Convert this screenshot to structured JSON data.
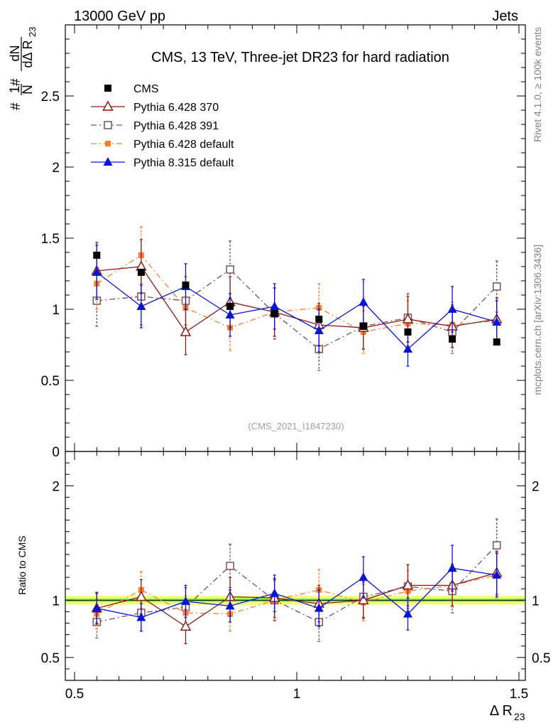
{
  "header": {
    "left": "13000 GeV pp",
    "right": "Jets"
  },
  "side_labels": {
    "rivet": "Rivet 4.1.0, ≥ 100k events",
    "mcplots": "mcplots.cern.ch [arXiv:1306.3436]"
  },
  "watermark": "(CMS_2021_I1847230)",
  "colors": {
    "cms": "#000000",
    "p370": "#8b1a1a",
    "p391": "#7a5060",
    "pdefault": "#ff7f2a",
    "p8": "#0a14d2",
    "band_outer": "#f2ff80",
    "band_inner": "#7cfc5a"
  },
  "chart_data": [
    {
      "type": "scatter",
      "title": "CMS, 13 TeV, Three-jet DR23 for hard radiation",
      "xlabel": "Δ R",
      "xlabel_sub": "23",
      "ylabel": "1/N dN/dΔ R23",
      "ylabel_parts": {
        "hash1": "#",
        "one": "1",
        "N": "N",
        "hash2": "#",
        "dN": "dN",
        "dDR": "dΔ R",
        "sub": "23"
      },
      "xlim": [
        0.5,
        1.5
      ],
      "ylim": [
        0,
        3.0
      ],
      "yticks": [
        0,
        0.5,
        1,
        1.5,
        2,
        2.5
      ],
      "ytick_labels": [
        "0",
        "0.5",
        "1",
        "1.5",
        "2",
        "2.5"
      ],
      "x": [
        0.55,
        0.65,
        0.75,
        0.85,
        0.95,
        1.05,
        1.15,
        1.25,
        1.35,
        1.45
      ],
      "series": [
        {
          "name": "CMS",
          "key": "cms",
          "marker": "filled-square",
          "line": "none",
          "values": [
            1.38,
            1.26,
            1.17,
            1.02,
            0.97,
            0.93,
            0.88,
            0.84,
            0.79,
            0.77
          ],
          "errors": [
            0.02,
            0.02,
            0.02,
            0.02,
            0.02,
            0.02,
            0.02,
            0.02,
            0.02,
            0.02
          ]
        },
        {
          "name": "Pythia 6.428 370",
          "key": "p370",
          "marker": "open-triangle",
          "line": "solid",
          "values": [
            1.27,
            1.3,
            0.84,
            1.05,
            0.98,
            0.89,
            0.87,
            0.93,
            0.88,
            0.93
          ],
          "errors": [
            0.2,
            0.19,
            0.16,
            0.18,
            0.17,
            0.15,
            0.15,
            0.16,
            0.15,
            0.15
          ]
        },
        {
          "name": "Pythia 6.428 391",
          "key": "p391",
          "marker": "open-square",
          "line": "dashdot",
          "values": [
            1.06,
            1.09,
            1.06,
            1.28,
            0.97,
            0.72,
            0.88,
            0.94,
            0.84,
            1.16
          ],
          "errors": [
            0.18,
            0.2,
            0.17,
            0.2,
            0.18,
            0.15,
            0.16,
            0.17,
            0.15,
            0.18
          ]
        },
        {
          "name": "Pythia 6.428 default",
          "key": "pdefault",
          "marker": "filled-small-square",
          "line": "dashdot",
          "values": [
            1.18,
            1.38,
            1.01,
            0.87,
            0.98,
            1.01,
            0.84,
            0.9,
            0.89,
            0.92
          ],
          "errors": [
            0.18,
            0.2,
            0.17,
            0.16,
            0.17,
            0.17,
            0.15,
            0.16,
            0.16,
            0.16
          ]
        },
        {
          "name": "Pythia 8.315 default",
          "key": "p8",
          "marker": "filled-triangle",
          "line": "solid",
          "values": [
            1.26,
            1.02,
            1.16,
            0.96,
            1.02,
            0.85,
            1.05,
            0.72,
            1.0,
            0.91
          ],
          "errors": [
            0.19,
            0.15,
            0.16,
            0.15,
            0.16,
            0.15,
            0.16,
            0.12,
            0.16,
            0.15
          ]
        }
      ]
    },
    {
      "type": "scatter",
      "title": "",
      "xlabel": "Δ R23",
      "ylabel": "Ratio to CMS",
      "xlim": [
        0.5,
        1.5
      ],
      "ylim": [
        0.3,
        2.3
      ],
      "xticks": [
        0.5,
        1,
        1.5
      ],
      "xtick_labels": [
        "0.5",
        "1",
        "1.5"
      ],
      "yticks": [
        0.5,
        1,
        2
      ],
      "ytick_labels": [
        "0.5",
        "1",
        "2"
      ],
      "reference_line": 1,
      "band_outer": [
        0.96,
        1.04
      ],
      "band_inner": [
        0.985,
        1.015
      ],
      "series": [
        {
          "name": "Pythia 6.428 370",
          "key": "p370",
          "values": [
            0.93,
            1.03,
            0.77,
            1.03,
            1.02,
            0.97,
            1.0,
            1.13,
            1.13,
            1.24
          ],
          "errors": [
            0.14,
            0.15,
            0.15,
            0.17,
            0.17,
            0.16,
            0.16,
            0.18,
            0.18,
            0.19
          ]
        },
        {
          "name": "Pythia 6.428 391",
          "key": "p391",
          "values": [
            0.81,
            0.89,
            0.94,
            1.3,
            1.0,
            0.81,
            1.03,
            1.12,
            1.08,
            1.48
          ],
          "errors": [
            0.14,
            0.16,
            0.17,
            0.19,
            0.18,
            0.17,
            0.18,
            0.19,
            0.19,
            0.23
          ]
        },
        {
          "name": "Pythia 6.428 default",
          "key": "pdefault",
          "values": [
            0.88,
            1.09,
            0.89,
            0.88,
            1.0,
            1.09,
            0.98,
            1.08,
            1.13,
            1.22
          ],
          "errors": [
            0.13,
            0.16,
            0.15,
            0.15,
            0.17,
            0.18,
            0.16,
            0.18,
            0.19,
            0.2
          ]
        },
        {
          "name": "Pythia 8.315 default",
          "key": "p8",
          "values": [
            0.93,
            0.85,
            0.99,
            0.95,
            1.06,
            0.93,
            1.2,
            0.88,
            1.28,
            1.22
          ],
          "errors": [
            0.13,
            0.12,
            0.14,
            0.14,
            0.16,
            0.16,
            0.18,
            0.14,
            0.2,
            0.19
          ]
        }
      ]
    }
  ]
}
